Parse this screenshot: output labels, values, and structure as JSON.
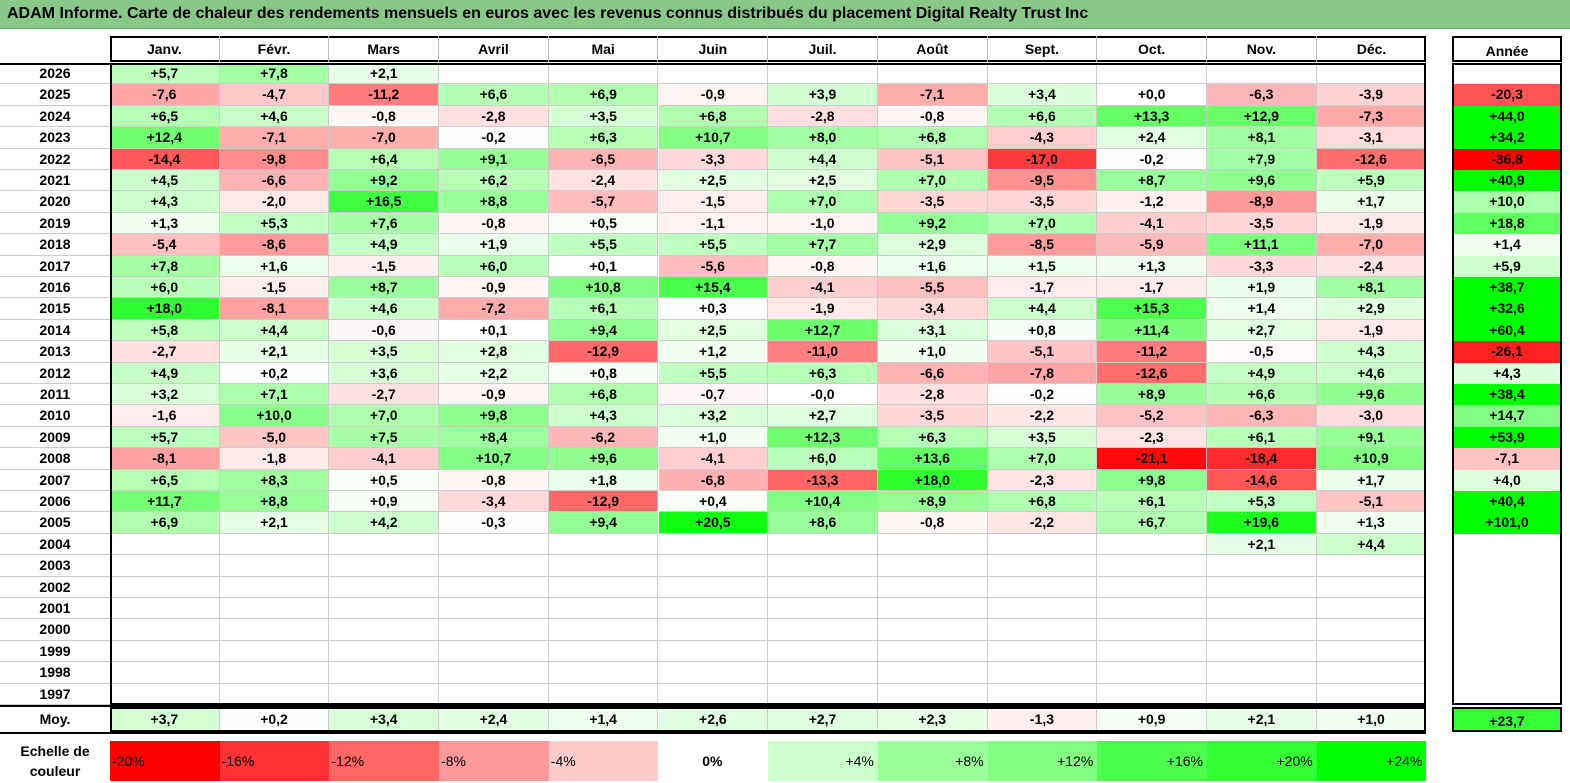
{
  "title": "ADAM Informe. Carte de chaleur des rendements mensuels en euros avec les revenus connus distribués du placement Digital Realty Trust Inc",
  "chart_data": {
    "type": "heatmap",
    "title": "ADAM Informe. Carte de chaleur des rendements mensuels en euros avec les revenus connus distribués du placement Digital Realty Trust Inc",
    "months": [
      "Janv.",
      "Févr.",
      "Mars",
      "Avril",
      "Mai",
      "Juin",
      "Juil.",
      "Août",
      "Sept.",
      "Oct.",
      "Nov.",
      "Déc."
    ],
    "year_header": "Année",
    "rows": [
      {
        "year": "2026",
        "values": [
          "+5,7",
          "+7,8",
          "+2,1",
          "",
          "",
          "",
          "",
          "",
          "",
          "",
          "",
          ""
        ],
        "annual": ""
      },
      {
        "year": "2025",
        "values": [
          "-7,6",
          "-4,7",
          "-11,2",
          "+6,6",
          "+6,9",
          "-0,9",
          "+3,9",
          "-7,1",
          "+3,4",
          "+0,0",
          "-6,3",
          "-3,9"
        ],
        "annual": "-20,3"
      },
      {
        "year": "2024",
        "values": [
          "+6,5",
          "+4,6",
          "-0,8",
          "-2,8",
          "+3,5",
          "+6,8",
          "-2,8",
          "-0,8",
          "+6,6",
          "+13,3",
          "+12,9",
          "-7,3"
        ],
        "annual": "+44,0"
      },
      {
        "year": "2023",
        "values": [
          "+12,4",
          "-7,1",
          "-7,0",
          "-0,2",
          "+6,3",
          "+10,7",
          "+8,0",
          "+6,8",
          "-4,3",
          "+2,4",
          "+8,1",
          "-3,1"
        ],
        "annual": "+34,2"
      },
      {
        "year": "2022",
        "values": [
          "-14,4",
          "-9,8",
          "+6,4",
          "+9,1",
          "-6,5",
          "-3,3",
          "+4,4",
          "-5,1",
          "-17,0",
          "-0,2",
          "+7,9",
          "-12,6"
        ],
        "annual": "-36,8"
      },
      {
        "year": "2021",
        "values": [
          "+4,5",
          "-6,6",
          "+9,2",
          "+6,2",
          "-2,4",
          "+2,5",
          "+2,5",
          "+7,0",
          "-9,5",
          "+8,7",
          "+9,6",
          "+5,9"
        ],
        "annual": "+40,9"
      },
      {
        "year": "2020",
        "values": [
          "+4,3",
          "-2,0",
          "+16,5",
          "+8,8",
          "-5,7",
          "-1,5",
          "+7,0",
          "-3,5",
          "-3,5",
          "-1,2",
          "-8,9",
          "+1,7"
        ],
        "annual": "+10,0"
      },
      {
        "year": "2019",
        "values": [
          "+1,3",
          "+5,3",
          "+7,6",
          "-0,8",
          "+0,5",
          "-1,1",
          "-1,0",
          "+9,2",
          "+7,0",
          "-4,1",
          "-3,5",
          "-1,9"
        ],
        "annual": "+18,8"
      },
      {
        "year": "2018",
        "values": [
          "-5,4",
          "-8,6",
          "+4,9",
          "+1,9",
          "+5,5",
          "+5,5",
          "+7,7",
          "+2,9",
          "-8,5",
          "-5,9",
          "+11,1",
          "-7,0"
        ],
        "annual": "+1,4"
      },
      {
        "year": "2017",
        "values": [
          "+7,8",
          "+1,6",
          "-1,5",
          "+6,0",
          "+0,1",
          "-5,6",
          "-0,8",
          "+1,6",
          "+1,5",
          "+1,3",
          "-3,3",
          "-2,4"
        ],
        "annual": "+5,9"
      },
      {
        "year": "2016",
        "values": [
          "+6,0",
          "-1,5",
          "+8,7",
          "-0,9",
          "+10,8",
          "+15,4",
          "-4,1",
          "-5,5",
          "-1,7",
          "-1,7",
          "+1,9",
          "+8,1"
        ],
        "annual": "+38,7"
      },
      {
        "year": "2015",
        "values": [
          "+18,0",
          "-8,1",
          "+4,6",
          "-7,2",
          "+6,1",
          "+0,3",
          "-1,9",
          "-3,4",
          "+4,4",
          "+15,3",
          "+1,4",
          "+2,9"
        ],
        "annual": "+32,6"
      },
      {
        "year": "2014",
        "values": [
          "+5,8",
          "+4,4",
          "-0,6",
          "+0,1",
          "+9,4",
          "+2,5",
          "+12,7",
          "+3,1",
          "+0,8",
          "+11,4",
          "+2,7",
          "-1,9"
        ],
        "annual": "+60,4"
      },
      {
        "year": "2013",
        "values": [
          "-2,7",
          "+2,1",
          "+3,5",
          "+2,8",
          "-12,9",
          "+1,2",
          "-11,0",
          "+1,0",
          "-5,1",
          "-11,2",
          "-0,5",
          "+4,3"
        ],
        "annual": "-26,1"
      },
      {
        "year": "2012",
        "values": [
          "+4,9",
          "+0,2",
          "+3,6",
          "+2,2",
          "+0,8",
          "+5,5",
          "+6,3",
          "-6,6",
          "-7,8",
          "-12,6",
          "+4,9",
          "+4,6"
        ],
        "annual": "+4,3"
      },
      {
        "year": "2011",
        "values": [
          "+3,2",
          "+7,1",
          "-2,7",
          "-0,9",
          "+6,8",
          "-0,7",
          "-0,0",
          "-2,8",
          "-0,2",
          "+8,9",
          "+6,6",
          "+9,6"
        ],
        "annual": "+38,4"
      },
      {
        "year": "2010",
        "values": [
          "-1,6",
          "+10,0",
          "+7,0",
          "+9,8",
          "+4,3",
          "+3,2",
          "+2,7",
          "-3,5",
          "-2,2",
          "-5,2",
          "-6,3",
          "-3,0"
        ],
        "annual": "+14,7"
      },
      {
        "year": "2009",
        "values": [
          "+5,7",
          "-5,0",
          "+7,5",
          "+8,4",
          "-6,2",
          "+1,0",
          "+12,3",
          "+6,3",
          "+3,5",
          "-2,3",
          "+6,1",
          "+9,1"
        ],
        "annual": "+53,9"
      },
      {
        "year": "2008",
        "values": [
          "-8,1",
          "-1,8",
          "-4,1",
          "+10,7",
          "+9,6",
          "-4,1",
          "+6,0",
          "+13,6",
          "+7,0",
          "-21,1",
          "-18,4",
          "+10,9"
        ],
        "annual": "-7,1"
      },
      {
        "year": "2007",
        "values": [
          "+6,5",
          "+8,3",
          "+0,5",
          "-0,8",
          "+1,8",
          "-6,8",
          "-13,3",
          "+18,0",
          "-2,3",
          "+9,8",
          "-14,6",
          "+1,7"
        ],
        "annual": "+4,0"
      },
      {
        "year": "2006",
        "values": [
          "+11,7",
          "+8,8",
          "+0,9",
          "-3,4",
          "-12,9",
          "+0,4",
          "+10,4",
          "+8,9",
          "+6,8",
          "+6,1",
          "+5,3",
          "-5,1"
        ],
        "annual": "+40,4"
      },
      {
        "year": "2005",
        "values": [
          "+6,9",
          "+2,1",
          "+4,2",
          "-0,3",
          "+9,4",
          "+20,5",
          "+8,6",
          "-0,8",
          "-2,2",
          "+6,7",
          "+19,6",
          "+1,3"
        ],
        "annual": "+101,0"
      },
      {
        "year": "2004",
        "values": [
          "",
          "",
          "",
          "",
          "",
          "",
          "",
          "",
          "",
          "",
          "+2,1",
          "+4,4"
        ],
        "annual": ""
      },
      {
        "year": "2003",
        "values": [
          "",
          "",
          "",
          "",
          "",
          "",
          "",
          "",
          "",
          "",
          "",
          ""
        ],
        "annual": ""
      },
      {
        "year": "2002",
        "values": [
          "",
          "",
          "",
          "",
          "",
          "",
          "",
          "",
          "",
          "",
          "",
          ""
        ],
        "annual": ""
      },
      {
        "year": "2001",
        "values": [
          "",
          "",
          "",
          "",
          "",
          "",
          "",
          "",
          "",
          "",
          "",
          ""
        ],
        "annual": ""
      },
      {
        "year": "2000",
        "values": [
          "",
          "",
          "",
          "",
          "",
          "",
          "",
          "",
          "",
          "",
          "",
          ""
        ],
        "annual": ""
      },
      {
        "year": "1999",
        "values": [
          "",
          "",
          "",
          "",
          "",
          "",
          "",
          "",
          "",
          "",
          "",
          ""
        ],
        "annual": ""
      },
      {
        "year": "1998",
        "values": [
          "",
          "",
          "",
          "",
          "",
          "",
          "",
          "",
          "",
          "",
          "",
          ""
        ],
        "annual": ""
      },
      {
        "year": "1997",
        "values": [
          "",
          "",
          "",
          "",
          "",
          "",
          "",
          "",
          "",
          "",
          "",
          ""
        ],
        "annual": ""
      }
    ],
    "average": {
      "label": "Moy.",
      "values": [
        "+3,7",
        "+0,2",
        "+3,4",
        "+2,4",
        "+1,4",
        "+2,6",
        "+2,7",
        "+2,3",
        "-1,3",
        "+0,9",
        "+2,1",
        "+1,0"
      ],
      "annual": "+23,7"
    },
    "scale": {
      "label": "Echelle de couleur",
      "stops": [
        "-20%",
        "-16%",
        "-12%",
        "-8%",
        "-4%",
        "0%",
        "+4%",
        "+8%",
        "+12%",
        "+16%",
        "+20%",
        "+24%"
      ],
      "colors": [
        "#ff0000",
        "#ff3333",
        "#ff6666",
        "#ff9999",
        "#ffcccc",
        "#ffffff",
        "#ccffcc",
        "#99ff99",
        "#80ff80",
        "#4dff4d",
        "#33ff33",
        "#00ff00"
      ]
    },
    "colors": {
      "negative": "#ff0000",
      "positive": "#00ff00",
      "neutral": "#ffffff"
    }
  }
}
